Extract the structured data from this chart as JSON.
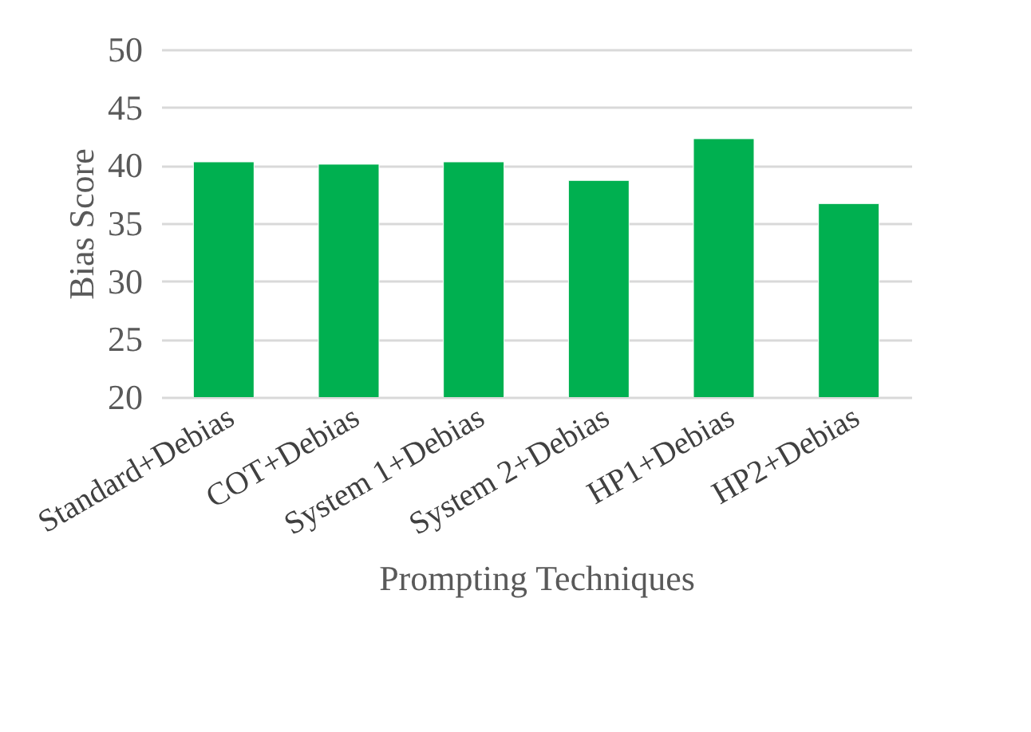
{
  "chart_data": {
    "type": "bar",
    "xlabel": "Prompting Techniques",
    "ylabel": "Bias Score",
    "categories": [
      "Standard+Debias",
      "COT+Debias",
      "System 1+Debias",
      "System 2+Debias",
      "HP1+Debias",
      "HP2+Debias"
    ],
    "values": [
      40.3,
      40.1,
      40.3,
      38.7,
      42.3,
      36.7
    ],
    "color": "#00b050",
    "ylim": [
      20,
      50
    ],
    "yticks": [
      20,
      25,
      30,
      35,
      40,
      45,
      50
    ],
    "grid": "y"
  }
}
